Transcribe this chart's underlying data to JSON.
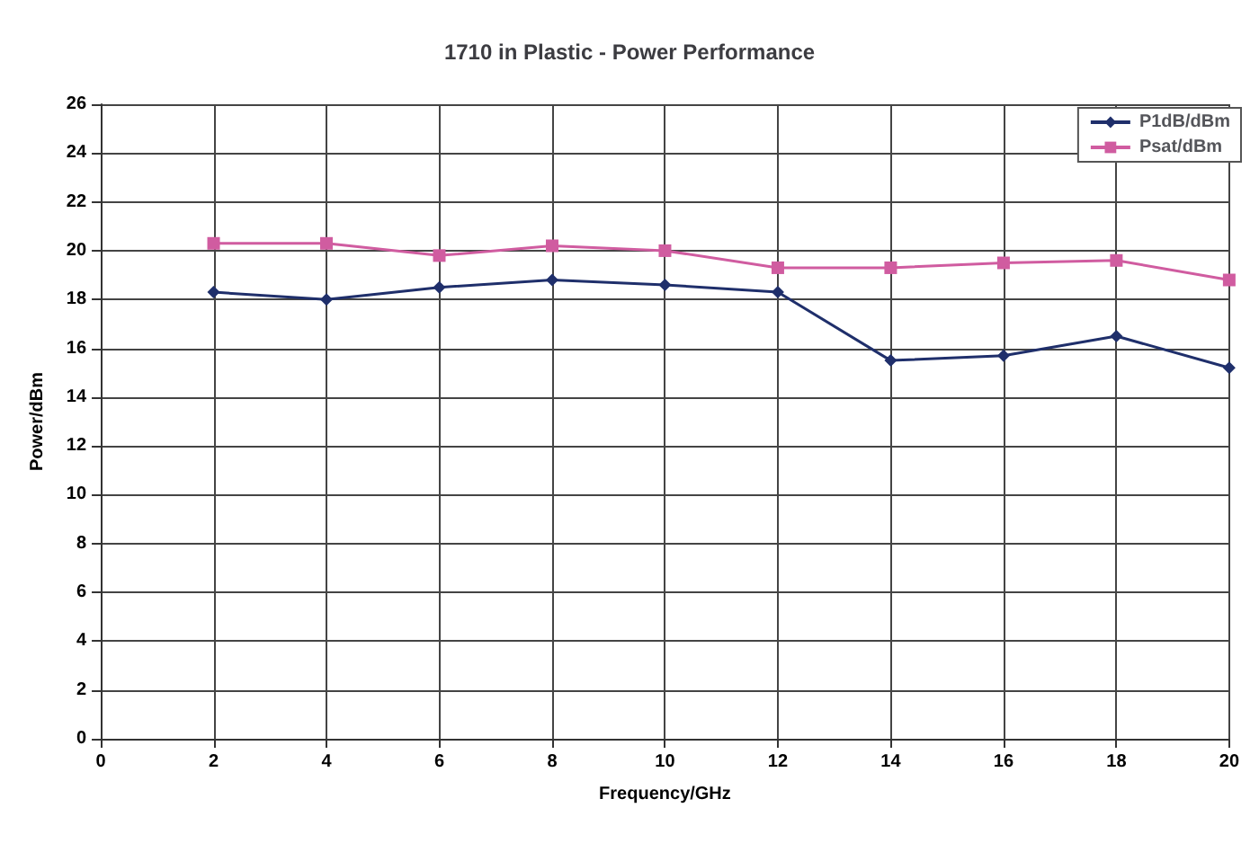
{
  "chart_data": {
    "type": "line",
    "title": "1710 in Plastic - Power Performance",
    "xlabel": "Frequency/GHz",
    "ylabel": "Power/dBm",
    "x": [
      2,
      4,
      6,
      8,
      10,
      12,
      14,
      16,
      18,
      20
    ],
    "series": [
      {
        "name": "P1dB/dBm",
        "color": "#1f2f6b",
        "marker": "diamond",
        "values": [
          18.3,
          18.0,
          18.5,
          18.8,
          18.6,
          18.3,
          15.5,
          15.7,
          16.5,
          15.2
        ]
      },
      {
        "name": "Psat/dBm",
        "color": "#d05ca0",
        "marker": "square",
        "values": [
          20.3,
          20.3,
          19.8,
          20.2,
          20.0,
          19.3,
          19.3,
          19.5,
          19.6,
          18.8
        ]
      }
    ],
    "xlim": [
      0,
      20
    ],
    "xticks": [
      0,
      2,
      4,
      6,
      8,
      10,
      12,
      14,
      16,
      18,
      20
    ],
    "ylim": [
      0,
      26
    ],
    "yticks": [
      0,
      2,
      4,
      6,
      8,
      10,
      12,
      14,
      16,
      18,
      20,
      22,
      24,
      26
    ],
    "grid": true,
    "legend": "top right",
    "line_style": "solid"
  }
}
